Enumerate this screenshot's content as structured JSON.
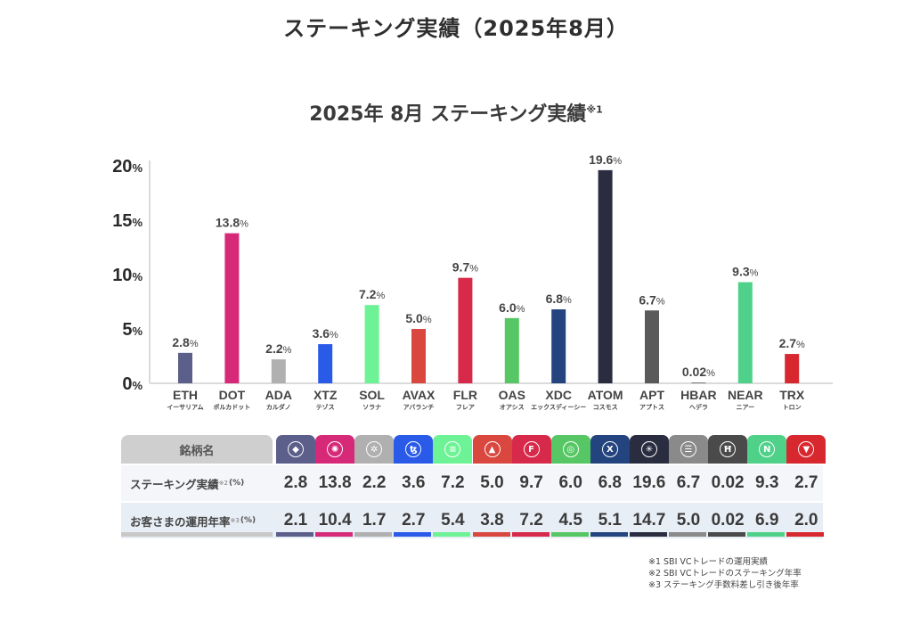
{
  "page_title": "ステーキング実績（2025年8月）",
  "chart_title": "2025年 8月  ステーキング実績",
  "chart_title_note": "※1",
  "chart_data": {
    "type": "bar",
    "title": "2025年 8月 ステーキング実績※1",
    "xlabel": "",
    "ylabel": "",
    "ylim": [
      0,
      20
    ],
    "yticks": [
      0,
      5,
      10,
      15,
      20
    ],
    "ytick_labels": [
      "0",
      "5",
      "10",
      "15",
      "20"
    ],
    "ytick_suffix": "%",
    "value_suffix": "%",
    "grid": false,
    "categories": [
      "ETH",
      "DOT",
      "ADA",
      "XTZ",
      "SOL",
      "AVAX",
      "FLR",
      "OAS",
      "XDC",
      "ATOM",
      "APT",
      "HBAR",
      "NEAR",
      "TRX"
    ],
    "category_sublabels": [
      "イーサリアム",
      "ポルカドット",
      "カルダノ",
      "テゾス",
      "ソラナ",
      "アバランチ",
      "フレア",
      "オアシス",
      "エックスディーシー",
      "コスモス",
      "アプトス",
      "ヘデラ",
      "ニアー",
      "トロン"
    ],
    "values": [
      2.8,
      13.8,
      2.2,
      3.6,
      7.2,
      5.0,
      9.7,
      6.0,
      6.8,
      19.6,
      6.7,
      0.02,
      9.3,
      2.7
    ],
    "value_labels": [
      "2.8",
      "13.8",
      "2.2",
      "3.6",
      "7.2",
      "5.0",
      "9.7",
      "6.0",
      "6.8",
      "19.6",
      "6.7",
      "0.02",
      "9.3",
      "2.7"
    ],
    "colors": [
      "#5b5f8a",
      "#d62a79",
      "#b0b0b0",
      "#2a5ae8",
      "#6ef296",
      "#d9473f",
      "#d7294a",
      "#56c764",
      "#23447e",
      "#2a2d40",
      "#5a5a5a",
      "#7a7a7a",
      "#4fd18a",
      "#d8282f"
    ]
  },
  "table": {
    "header_label": "銘柄名",
    "rows": [
      {
        "label": "ステーキング実績",
        "note": "※2",
        "unit": "(%)",
        "values": [
          "2.8",
          "13.8",
          "2.2",
          "3.6",
          "7.2",
          "5.0",
          "9.7",
          "6.0",
          "6.8",
          "19.6",
          "6.7",
          "0.02",
          "9.3",
          "2.7"
        ]
      },
      {
        "label": "お客さまの運用年率",
        "note": "※3",
        "unit": "(%)",
        "values": [
          "2.1",
          "10.4",
          "1.7",
          "2.7",
          "5.4",
          "3.8",
          "7.2",
          "4.5",
          "5.1",
          "14.7",
          "5.0",
          "0.02",
          "6.9",
          "2.0"
        ]
      }
    ],
    "coins": [
      {
        "symbol": "ETH",
        "icon": "ethereum-icon",
        "glyph": "◆",
        "color": "#5b5f8a"
      },
      {
        "symbol": "DOT",
        "icon": "polkadot-icon",
        "glyph": "✺",
        "color": "#d62a79"
      },
      {
        "symbol": "ADA",
        "icon": "cardano-icon",
        "glyph": "✲",
        "color": "#b0b0b0"
      },
      {
        "symbol": "XTZ",
        "icon": "tezos-icon",
        "glyph": "ꜩ",
        "color": "#2a5ae8"
      },
      {
        "symbol": "SOL",
        "icon": "solana-icon",
        "glyph": "≡",
        "color": "#6ef296"
      },
      {
        "symbol": "AVAX",
        "icon": "avalanche-icon",
        "glyph": "▲",
        "color": "#d9473f"
      },
      {
        "symbol": "FLR",
        "icon": "flare-icon",
        "glyph": "F",
        "color": "#d7294a"
      },
      {
        "symbol": "OAS",
        "icon": "oasys-icon",
        "glyph": "◎",
        "color": "#56c764"
      },
      {
        "symbol": "XDC",
        "icon": "xdc-icon",
        "glyph": "X",
        "color": "#23447e"
      },
      {
        "symbol": "ATOM",
        "icon": "cosmos-icon",
        "glyph": "✳",
        "color": "#2a2d40"
      },
      {
        "symbol": "APT",
        "icon": "aptos-icon",
        "glyph": "☰",
        "color": "#8a8a8a"
      },
      {
        "symbol": "HBAR",
        "icon": "hedera-icon",
        "glyph": "Ħ",
        "color": "#4a4a4a"
      },
      {
        "symbol": "NEAR",
        "icon": "near-icon",
        "glyph": "N",
        "color": "#4fd18a"
      },
      {
        "symbol": "TRX",
        "icon": "tron-icon",
        "glyph": "▼",
        "color": "#d8282f"
      }
    ]
  },
  "notes": [
    "※1  SBI VCトレードの運用実績",
    "※2  SBI VCトレードのステーキング年率",
    "※3  ステーキング手数料差し引き後年率"
  ]
}
